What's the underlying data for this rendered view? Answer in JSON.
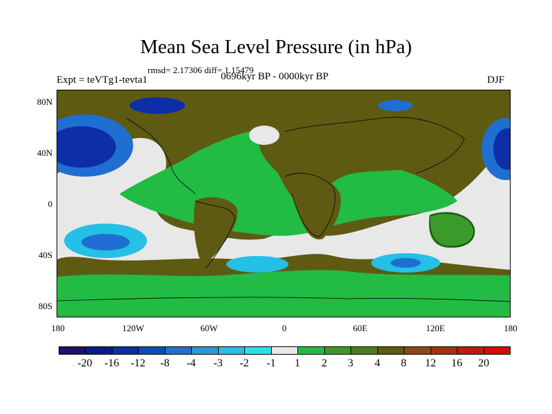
{
  "title": "Mean Sea Level Pressure (in hPa)",
  "stats": "rmsd= 2.17306 diff= 1.15479",
  "experiment": "Expt = teVTg1-tevta1",
  "period": "0696kyr BP - 0000kyr BP",
  "season": "DJF",
  "lat_labels": [
    "80N",
    "40N",
    "0",
    "40S",
    "80S"
  ],
  "lon_labels": [
    "180",
    "120W",
    "60W",
    "0",
    "60E",
    "120E",
    "180"
  ],
  "colorbar": {
    "labels": [
      "-20",
      "-16",
      "-12",
      "-8",
      "-4",
      "-3",
      "-2",
      "-1",
      "1",
      "2",
      "3",
      "4",
      "8",
      "12",
      "16",
      "20"
    ],
    "colors": [
      "#1f0f6e",
      "#0a1a8a",
      "#0c2ea6",
      "#0a4cc0",
      "#1f6fd2",
      "#2a98dc",
      "#24c0e6",
      "#2ae0e8",
      "#e8e8e8",
      "#22bb44",
      "#3a9a2a",
      "#4d7a1e",
      "#5e5a12",
      "#8a4a12",
      "#a8300e",
      "#c01a0a",
      "#d80a0a"
    ]
  },
  "map_colors": {
    "base": "#5e5a12",
    "green": "#22bb44",
    "dark_green": "#3a9a2a",
    "white": "#e8e8e8",
    "cyan": "#24c0e6",
    "blue": "#0c2ea6",
    "mid_blue": "#1f6fd2",
    "brown": "#8a4a12"
  }
}
